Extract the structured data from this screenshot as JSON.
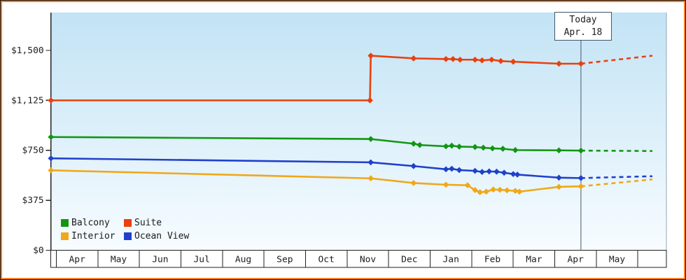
{
  "colors": {
    "plot_bg_top": "#c2e3f5",
    "plot_bg_bottom": "#f7fcff",
    "frame": "#ff7e1e",
    "axis": "#222222",
    "right_edge": "#93a8bb",
    "today_line": "#44566a",
    "month_box_fill": "#ffffff"
  },
  "legend": {
    "items": [
      {
        "label": "Balcony",
        "color": "#129612"
      },
      {
        "label": "Suite",
        "color": "#e8400e"
      },
      {
        "label": "Interior",
        "color": "#f0a818"
      },
      {
        "label": "Ocean View",
        "color": "#2040cc"
      }
    ]
  },
  "chart_data": {
    "type": "line",
    "title": "",
    "x_axis": {
      "unit": "month",
      "labels": [
        "Apr",
        "May",
        "Jun",
        "Jul",
        "Aug",
        "Sep",
        "Oct",
        "Nov",
        "Dec",
        "Jan",
        "Feb",
        "Mar",
        "Apr",
        "May"
      ]
    },
    "y_axis": {
      "max": 1500,
      "ticks": [
        {
          "value": 0,
          "label": "$0"
        },
        {
          "value": 375,
          "label": "$375"
        },
        {
          "value": 750,
          "label": "$750"
        },
        {
          "value": 1125,
          "label": "$1,125"
        },
        {
          "value": 1500,
          "label": "$1,500"
        }
      ]
    },
    "today": {
      "label": "Today",
      "date": "Apr. 18",
      "month_position": 12.63
    },
    "series": [
      {
        "name": "Interior",
        "color": "#f0a818",
        "points": [
          [
            -0.13,
            600
          ],
          [
            7.57,
            540
          ],
          [
            8.6,
            505
          ],
          [
            9.38,
            492
          ],
          [
            9.9,
            488
          ],
          [
            10.08,
            452
          ],
          [
            10.2,
            436
          ],
          [
            10.35,
            440
          ],
          [
            10.52,
            456
          ],
          [
            10.68,
            454
          ],
          [
            10.85,
            450
          ],
          [
            11.05,
            446
          ],
          [
            11.15,
            440
          ],
          [
            12.1,
            476
          ],
          [
            12.63,
            480
          ]
        ],
        "projection": [
          [
            12.63,
            480
          ],
          [
            14.35,
            532
          ]
        ]
      },
      {
        "name": "Ocean View",
        "color": "#2040cc",
        "points": [
          [
            -0.13,
            690
          ],
          [
            7.57,
            660
          ],
          [
            8.6,
            632
          ],
          [
            9.38,
            608
          ],
          [
            9.52,
            612
          ],
          [
            9.7,
            602
          ],
          [
            10.08,
            596
          ],
          [
            10.25,
            588
          ],
          [
            10.42,
            592
          ],
          [
            10.6,
            590
          ],
          [
            10.78,
            582
          ],
          [
            11.0,
            572
          ],
          [
            11.1,
            568
          ],
          [
            12.1,
            545
          ],
          [
            12.63,
            542
          ]
        ],
        "projection": [
          [
            12.63,
            542
          ],
          [
            14.35,
            556
          ]
        ]
      },
      {
        "name": "Balcony",
        "color": "#129612",
        "points": [
          [
            -0.13,
            850
          ],
          [
            7.57,
            835
          ],
          [
            8.6,
            800
          ],
          [
            8.75,
            790
          ],
          [
            9.38,
            780
          ],
          [
            9.52,
            785
          ],
          [
            9.7,
            778
          ],
          [
            10.08,
            775
          ],
          [
            10.28,
            770
          ],
          [
            10.5,
            765
          ],
          [
            10.75,
            762
          ],
          [
            11.05,
            752
          ],
          [
            12.1,
            750
          ],
          [
            12.63,
            748
          ]
        ],
        "projection": [
          [
            12.63,
            748
          ],
          [
            14.35,
            745
          ]
        ]
      },
      {
        "name": "Suite",
        "color": "#e8400e",
        "points": [
          [
            -0.13,
            1125
          ],
          [
            7.55,
            1125
          ],
          [
            7.57,
            1460
          ],
          [
            8.6,
            1440
          ],
          [
            9.38,
            1435
          ],
          [
            9.55,
            1435
          ],
          [
            9.72,
            1430
          ],
          [
            10.08,
            1430
          ],
          [
            10.25,
            1425
          ],
          [
            10.48,
            1430
          ],
          [
            10.7,
            1420
          ],
          [
            11.0,
            1415
          ],
          [
            12.1,
            1400
          ],
          [
            12.63,
            1400
          ]
        ],
        "projection": [
          [
            12.63,
            1400
          ],
          [
            14.35,
            1460
          ]
        ]
      }
    ]
  }
}
